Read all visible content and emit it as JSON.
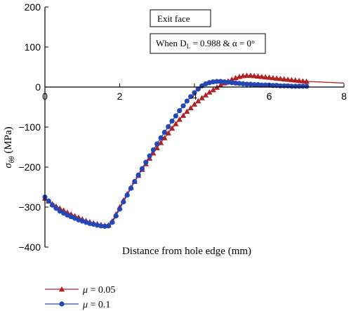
{
  "chart_data": {
    "type": "line",
    "xlabel": "Distance from hole edge (mm)",
    "ylabel_symbol": "σ",
    "ylabel_subscript": "θθ",
    "ylabel_unit": " (MPa)",
    "xlim": [
      0,
      8
    ],
    "ylim": [
      -400,
      200
    ],
    "xticks": [
      0,
      2,
      4,
      6,
      8
    ],
    "yticks": [
      200,
      100,
      0,
      -100,
      -200,
      -300,
      -400
    ],
    "grid": false,
    "legend_position": "bottom-left",
    "annotations": {
      "box1": "Exit face",
      "box2_prefix": "When D",
      "box2_sub": "L",
      "box2_suffix": " = 0.988 & α = 0°"
    },
    "series": [
      {
        "name": "μ = 0.05",
        "legend_symbol": "μ",
        "legend_value": " = 0.05",
        "color": "#b22222",
        "marker": "triangle",
        "x": [
          0.0,
          0.1,
          0.2,
          0.3,
          0.4,
          0.5,
          0.6,
          0.7,
          0.8,
          0.9,
          1.0,
          1.1,
          1.2,
          1.3,
          1.4,
          1.5,
          1.6,
          1.7,
          1.8,
          1.9,
          2.0,
          2.1,
          2.2,
          2.3,
          2.4,
          2.5,
          2.6,
          2.7,
          2.8,
          2.9,
          3.0,
          3.1,
          3.2,
          3.3,
          3.4,
          3.5,
          3.6,
          3.7,
          3.8,
          3.9,
          4.0,
          4.1,
          4.2,
          4.3,
          4.4,
          4.5,
          4.6,
          4.7,
          4.8,
          4.9,
          5.0,
          5.1,
          5.2,
          5.3,
          5.4,
          5.5,
          5.6,
          5.7,
          5.8,
          5.9,
          6.0,
          6.1,
          6.2,
          6.3,
          6.4,
          6.5,
          6.6,
          6.7,
          6.8,
          6.9,
          7.0,
          8.0
        ],
        "y": [
          -278,
          -285,
          -292,
          -298,
          -303,
          -308,
          -313,
          -318,
          -322,
          -326,
          -330,
          -334,
          -337,
          -340,
          -342,
          -344,
          -346,
          -345,
          -335,
          -318,
          -300,
          -283,
          -267,
          -251,
          -236,
          -221,
          -206,
          -192,
          -178,
          -165,
          -152,
          -139,
          -127,
          -115,
          -103,
          -92,
          -81,
          -71,
          -61,
          -52,
          -43,
          -35,
          -27,
          -20,
          -13,
          -7,
          -1,
          5,
          10,
          15,
          19,
          23,
          26,
          28,
          29,
          29,
          28,
          27,
          26,
          25,
          24,
          23,
          22,
          21,
          20,
          19,
          18,
          17,
          16,
          15,
          14,
          10
        ]
      },
      {
        "name": "μ = 0.1",
        "legend_symbol": "μ",
        "legend_value": " = 0.1",
        "color": "#2546b5",
        "marker": "circle",
        "x": [
          0.0,
          0.1,
          0.2,
          0.3,
          0.4,
          0.5,
          0.6,
          0.7,
          0.8,
          0.9,
          1.0,
          1.1,
          1.2,
          1.3,
          1.4,
          1.5,
          1.6,
          1.7,
          1.8,
          1.9,
          2.0,
          2.1,
          2.2,
          2.3,
          2.4,
          2.5,
          2.6,
          2.7,
          2.8,
          2.9,
          3.0,
          3.1,
          3.2,
          3.3,
          3.4,
          3.5,
          3.6,
          3.7,
          3.8,
          3.9,
          4.0,
          4.1,
          4.2,
          4.3,
          4.4,
          4.5,
          4.6,
          4.7,
          4.8,
          4.9,
          5.0,
          5.1,
          5.2,
          5.3,
          5.4,
          5.5,
          5.6,
          5.7,
          5.8,
          5.9,
          6.0,
          6.1,
          6.2,
          6.3,
          6.4,
          6.5,
          6.6,
          6.7,
          6.8,
          6.9,
          7.0
        ],
        "y": [
          -275,
          -285,
          -295,
          -303,
          -310,
          -315,
          -320,
          -324,
          -328,
          -332,
          -335,
          -338,
          -341,
          -343,
          -345,
          -347,
          -348,
          -347,
          -338,
          -322,
          -305,
          -287,
          -270,
          -253,
          -236,
          -220,
          -204,
          -188,
          -172,
          -157,
          -142,
          -127,
          -113,
          -99,
          -85,
          -72,
          -59,
          -47,
          -35,
          -24,
          -14,
          -5,
          3,
          8,
          11,
          13,
          14,
          14,
          13,
          12,
          11,
          10,
          9,
          8,
          7,
          7,
          6,
          6,
          5,
          5,
          5,
          4,
          4,
          3,
          3,
          3,
          2,
          2,
          2,
          2,
          2
        ]
      }
    ]
  }
}
